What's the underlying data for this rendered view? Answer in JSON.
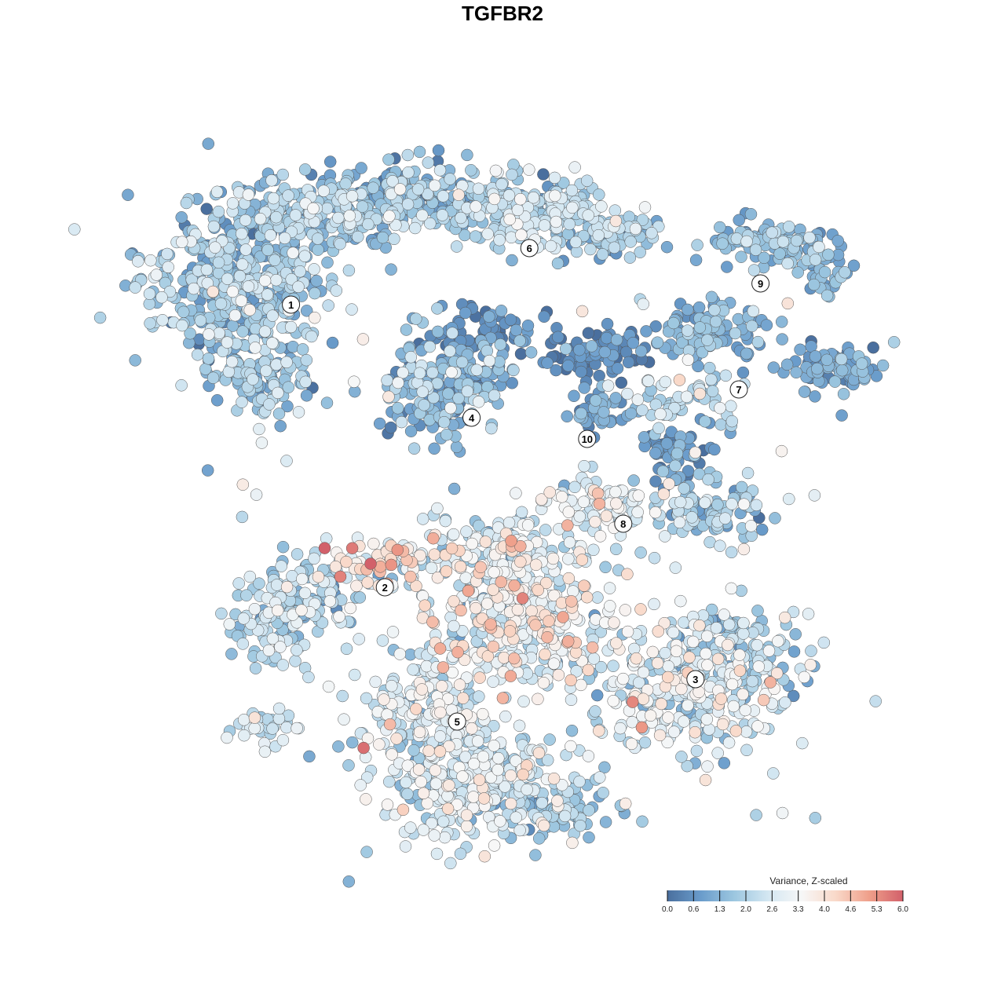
{
  "chart_data": {
    "type": "scatter",
    "title": "TGFBR2",
    "color_scale": {
      "title": "Variance, Z-scaled",
      "ticks": [
        "0.0",
        "0.6",
        "1.3",
        "2.0",
        "2.6",
        "3.3",
        "4.0",
        "4.6",
        "5.3",
        "6.0"
      ],
      "min": 0.0,
      "max": 6.0,
      "colors": [
        "#4a6f9e",
        "#6a9ccb",
        "#9dc7e0",
        "#d4e7f2",
        "#f7f7f7",
        "#f9d9c9",
        "#ef9f8a",
        "#d2606a"
      ]
    },
    "cluster_labels": [
      {
        "label": "1",
        "x": 0.18,
        "y": 0.78,
        "level": 1.7
      },
      {
        "label": "6",
        "x": 0.51,
        "y": 0.86,
        "level": 1.9
      },
      {
        "label": "9",
        "x": 0.83,
        "y": 0.81,
        "level": 1.4
      },
      {
        "label": "7",
        "x": 0.8,
        "y": 0.66,
        "level": 1.2
      },
      {
        "label": "4",
        "x": 0.43,
        "y": 0.62,
        "level": 1.3
      },
      {
        "label": "10",
        "x": 0.59,
        "y": 0.59,
        "level": 0.9
      },
      {
        "label": "8",
        "x": 0.64,
        "y": 0.47,
        "level": 2.0
      },
      {
        "label": "2",
        "x": 0.31,
        "y": 0.38,
        "level": 3.3
      },
      {
        "label": "3",
        "x": 0.74,
        "y": 0.25,
        "level": 2.9
      },
      {
        "label": "5",
        "x": 0.41,
        "y": 0.19,
        "level": 2.6
      }
    ],
    "grid": false,
    "legend": "bottom-right"
  }
}
